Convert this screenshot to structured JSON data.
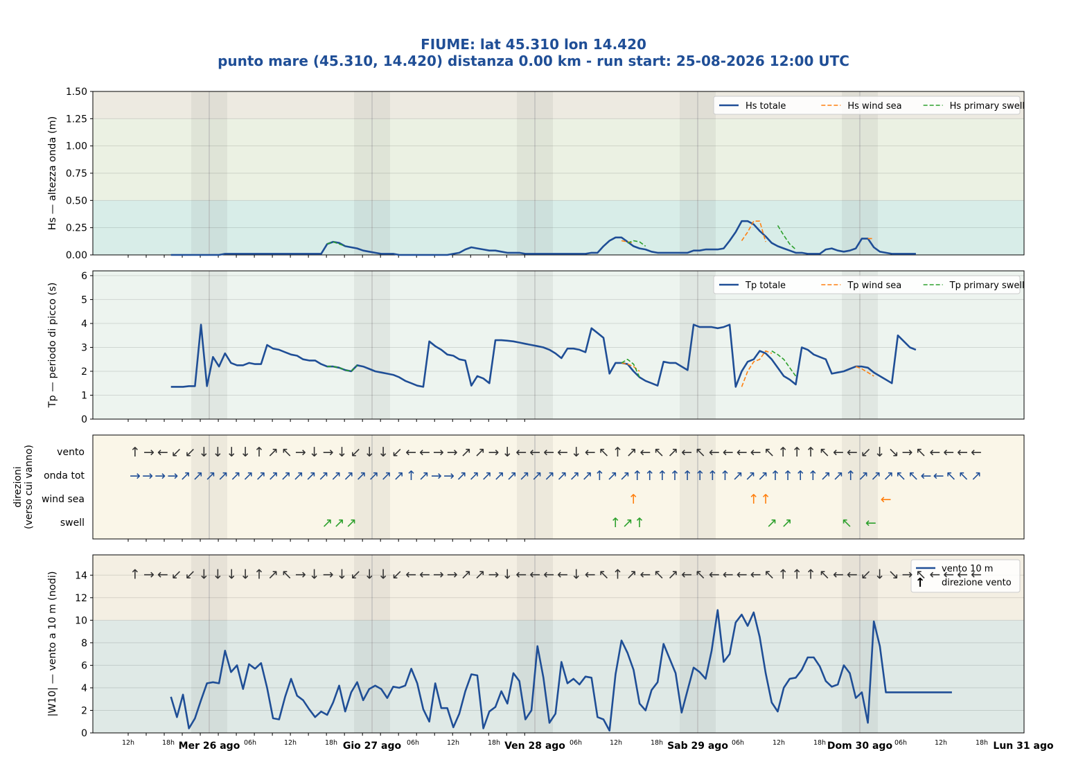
{
  "header": {
    "title": "FIUME: lat 45.310 lon 14.420",
    "subtitle": "punto mare (45.310, 14.420)  distanza 0.00 km  -  run start: 25-08-2026 12:00 UTC"
  },
  "colors": {
    "total": "#1f4e96",
    "wind_sea": "#ff7f0e",
    "swell": "#2ca02c",
    "arrow_gray": "#333333"
  },
  "x_axis": {
    "hour_labels": [
      "12h",
      "18h",
      "06h",
      "12h",
      "18h",
      "06h",
      "12h",
      "18h",
      "06h",
      "12h",
      "18h",
      "06h",
      "12h",
      "18h",
      "06h",
      "12h",
      "18h"
    ],
    "day_labels": [
      "Mer 26 ago",
      "Gio 27 ago",
      "Ven 28 ago",
      "Sab 29 ago",
      "Dom 30 ago",
      "Lun 31 ago"
    ]
  },
  "chart_data": [
    {
      "type": "line",
      "ylabel": "Hs — altezza onda (m)",
      "ylim": [
        0,
        1.5
      ],
      "yticks": [
        "0.00",
        "0.25",
        "0.50",
        "0.75",
        "1.00",
        "1.25",
        "1.50"
      ],
      "legend": [
        "Hs totale",
        "Hs wind sea",
        "Hs primary swell"
      ],
      "legend_position": "top-right",
      "x_hours_from_start": [
        0,
        2,
        4,
        6,
        8,
        10,
        12,
        14,
        16,
        18,
        20,
        22,
        24,
        26,
        28,
        30,
        32,
        34,
        36,
        38,
        40,
        42,
        44,
        46,
        48,
        50,
        52,
        54,
        56,
        58,
        60,
        62,
        64,
        66,
        68,
        70,
        72,
        74,
        76,
        78,
        80,
        82,
        84,
        86,
        88,
        90,
        92,
        94,
        96,
        98,
        100,
        102,
        104,
        106,
        108,
        110,
        112,
        114,
        116,
        118,
        120,
        122,
        124,
        126,
        128,
        130,
        132,
        134,
        136,
        138,
        140,
        142,
        144,
        146,
        148,
        150,
        152,
        154,
        156,
        158,
        160,
        162,
        164,
        166,
        168,
        170,
        172,
        174,
        176,
        178,
        180,
        182,
        184,
        186,
        188,
        190,
        192,
        194,
        196,
        198,
        200,
        202,
        204,
        206,
        208,
        210,
        212,
        214,
        216,
        218,
        220,
        222,
        224,
        226,
        228,
        230,
        232,
        234,
        236,
        238,
        240,
        242,
        244,
        246,
        248,
        250,
        252,
        254,
        256,
        258,
        260,
        262,
        264,
        266,
        268,
        270,
        272,
        274,
        276
      ],
      "series": [
        {
          "name": "Hs totale",
          "values": [
            0.0,
            0.0,
            0.0,
            0.0,
            0.0,
            0.0,
            0.0,
            0.0,
            0.0,
            0.01,
            0.01,
            0.01,
            0.01,
            0.01,
            0.01,
            0.01,
            0.01,
            0.01,
            0.01,
            0.01,
            0.01,
            0.01,
            0.01,
            0.01,
            0.01,
            0.01,
            0.1,
            0.12,
            0.11,
            0.08,
            0.07,
            0.06,
            0.04,
            0.03,
            0.02,
            0.01,
            0.01,
            0.01,
            0.0,
            0.0,
            0.0,
            0.0,
            0.0,
            0.0,
            0.0,
            0.0,
            0.0,
            0.01,
            0.02,
            0.05,
            0.07,
            0.06,
            0.05,
            0.04,
            0.04,
            0.03,
            0.02,
            0.02,
            0.02,
            0.01,
            0.01,
            0.01,
            0.01,
            0.01,
            0.01,
            0.01,
            0.01,
            0.01,
            0.01,
            0.01,
            0.02,
            0.02,
            0.08,
            0.13,
            0.16,
            0.16,
            0.12,
            0.08,
            0.06,
            0.05,
            0.03,
            0.02,
            0.02,
            0.02,
            0.02,
            0.02,
            0.02,
            0.04,
            0.04,
            0.05,
            0.05,
            0.05,
            0.06,
            0.13,
            0.21,
            0.31,
            0.31,
            0.28,
            0.22,
            0.17,
            0.11,
            0.08,
            0.06,
            0.04,
            0.02,
            0.02,
            0.01,
            0.01,
            0.01,
            0.05,
            0.06,
            0.04,
            0.03,
            0.04,
            0.06,
            0.15,
            0.15,
            0.07,
            0.03,
            0.02,
            0.01,
            0.01,
            0.01,
            0.01,
            0.01
          ]
        },
        {
          "name": "Hs wind sea",
          "segments": [
            {
              "start_hour": 150,
              "values": [
                0.13,
                0.12,
                0.11
              ]
            },
            {
              "start_hour": 190,
              "values": [
                0.13,
                0.21,
                0.31,
                0.31,
                0.12
              ]
            },
            {
              "start_hour": 232,
              "values": [
                0.15,
                0.15
              ]
            }
          ]
        },
        {
          "name": "Hs primary swell",
          "segments": [
            {
              "start_hour": 52,
              "values": [
                0.1,
                0.12,
                0.1,
                0.08
              ]
            },
            {
              "start_hour": 152,
              "values": [
                0.11,
                0.13,
                0.12,
                0.08
              ]
            },
            {
              "start_hour": 202,
              "values": [
                0.27,
                0.18,
                0.1,
                0.05
              ]
            }
          ]
        }
      ]
    },
    {
      "type": "line",
      "ylabel": "Tp — periodo di picco (s)",
      "ylim": [
        0,
        6.2
      ],
      "yticks": [
        "0",
        "1",
        "2",
        "3",
        "4",
        "5",
        "6"
      ],
      "legend": [
        "Tp totale",
        "Tp wind sea",
        "Tp primary swell"
      ],
      "legend_position": "top-right",
      "series": [
        {
          "name": "Tp totale",
          "values": [
            1.35,
            1.35,
            1.35,
            1.38,
            1.38,
            3.95,
            1.38,
            2.6,
            2.2,
            2.75,
            2.35,
            2.25,
            2.25,
            2.35,
            2.3,
            2.3,
            3.1,
            2.95,
            2.9,
            2.8,
            2.7,
            2.65,
            2.5,
            2.45,
            2.45,
            2.3,
            2.2,
            2.2,
            2.15,
            2.05,
            2.0,
            2.25,
            2.2,
            2.1,
            2.0,
            1.95,
            1.9,
            1.85,
            1.75,
            1.6,
            1.5,
            1.4,
            1.35,
            3.25,
            3.05,
            2.9,
            2.7,
            2.65,
            2.5,
            2.45,
            1.4,
            1.8,
            1.7,
            1.5,
            3.3,
            3.3,
            3.28,
            3.25,
            3.2,
            3.15,
            3.1,
            3.05,
            3.0,
            2.9,
            2.75,
            2.55,
            2.95,
            2.95,
            2.9,
            2.8,
            3.8,
            3.6,
            3.4,
            1.9,
            2.35,
            2.35,
            2.3,
            2.0,
            1.75,
            1.6,
            1.5,
            1.4,
            2.4,
            2.35,
            2.35,
            2.2,
            2.05,
            3.95,
            3.85,
            3.85,
            3.85,
            3.8,
            3.85,
            3.95,
            1.35,
            2.0,
            2.4,
            2.5,
            2.85,
            2.75,
            2.5,
            2.15,
            1.8,
            1.65,
            1.45,
            3.0,
            2.9,
            2.7,
            2.6,
            2.5,
            1.9,
            1.95,
            2.0,
            2.1,
            2.2,
            2.2,
            2.15,
            1.95,
            1.8,
            1.65,
            1.5,
            3.5,
            3.25,
            3.0,
            2.9
          ]
        },
        {
          "name": "Tp wind sea",
          "segments": [
            {
              "start_hour": 150,
              "values": [
                2.35,
                2.3,
                2.2,
                2.0
              ]
            },
            {
              "start_hour": 190,
              "values": [
                1.35,
                2.0,
                2.4,
                2.5,
                2.85,
                2.75
              ]
            },
            {
              "start_hour": 228,
              "values": [
                2.2,
                2.1,
                1.95,
                1.8
              ]
            }
          ]
        },
        {
          "name": "Tp primary swell",
          "segments": [
            {
              "start_hour": 52,
              "values": [
                2.2,
                2.2,
                2.15,
                2.05,
                2.0,
                2.25
              ]
            },
            {
              "start_hour": 150,
              "values": [
                2.35,
                2.5,
                2.3,
                1.75
              ]
            },
            {
              "start_hour": 200,
              "values": [
                2.85,
                2.7,
                2.5,
                2.15,
                1.8
              ]
            }
          ]
        }
      ]
    },
    {
      "type": "table",
      "ylabel": "direzioni",
      "ylabel2": "(verso cui vanno)",
      "rows": [
        "vento",
        "onda tot",
        "wind sea",
        "swell"
      ],
      "vento": [
        "↑",
        "→",
        "←",
        "↙",
        "↙",
        "↓",
        "↓",
        "↓",
        "↓",
        "↑",
        "↗",
        "↖",
        "→",
        "↓",
        "→",
        "↓",
        "↙",
        "↓",
        "↓",
        "↙",
        "←",
        "←",
        "→",
        "→",
        "↗",
        "↗",
        "→",
        "↓",
        "←",
        "←",
        "←",
        "←",
        "↓",
        "←",
        "↖",
        "↑",
        "↗",
        "←",
        "↖",
        "↗",
        "←",
        "↖",
        "←",
        "←",
        "←",
        "←",
        "↖",
        "↑",
        "↑",
        "↑",
        "↖",
        "←",
        "←",
        "↙",
        "↓",
        "↘",
        "→",
        "↖",
        "←",
        "←",
        "←",
        "←"
      ],
      "onda_tot": [
        "→",
        "→",
        "→",
        "→",
        "↗",
        "↗",
        "↗",
        "↗",
        "↗",
        "↗",
        "↗",
        "↗",
        "↗",
        "↗",
        "↗",
        "↗",
        "↗",
        "↗",
        "↗",
        "↗",
        "↗",
        "↗",
        "↑",
        "↗",
        "→",
        "→",
        "↗",
        "↗",
        "↗",
        "↗",
        "↗",
        "↗",
        "↗",
        "↗",
        "↗",
        "↗",
        "↗",
        "↑",
        "↗",
        "↗",
        "↑",
        "↑",
        "↑",
        "↑",
        "↑",
        "↑",
        "↑",
        "↑",
        "↗",
        "↗",
        "↗",
        "↑",
        "↑",
        "↑",
        "↑",
        "↗",
        "↗",
        "↑",
        "↗",
        "↗",
        "↗",
        "↖",
        "↖",
        "←",
        "←",
        "↖",
        "↖",
        "↗"
      ],
      "wind_sea": [
        {
          "hour": 154,
          "arrow": "↑"
        },
        {
          "hour": 194,
          "arrow": "↑"
        },
        {
          "hour": 198,
          "arrow": "↑"
        },
        {
          "hour": 238,
          "arrow": "←"
        }
      ],
      "swell": [
        {
          "hour": 52,
          "arrow": "↗"
        },
        {
          "hour": 56,
          "arrow": "↗"
        },
        {
          "hour": 60,
          "arrow": "↗"
        },
        {
          "hour": 148,
          "arrow": "↑"
        },
        {
          "hour": 152,
          "arrow": "↗"
        },
        {
          "hour": 156,
          "arrow": "↑"
        },
        {
          "hour": 200,
          "arrow": "↗"
        },
        {
          "hour": 205,
          "arrow": "↗"
        },
        {
          "hour": 225,
          "arrow": "↖"
        },
        {
          "hour": 233,
          "arrow": "←"
        }
      ]
    },
    {
      "type": "line",
      "ylabel": "|W10| — vento a 10 m (nodi)",
      "ylim": [
        0,
        15.8
      ],
      "yticks": [
        "0",
        "2",
        "4",
        "6",
        "8",
        "10",
        "12",
        "14"
      ],
      "legend": [
        "vento 10 m",
        "direzione vento"
      ],
      "legend_position": "top-right",
      "series": [
        {
          "name": "vento 10 m",
          "values": [
            3.2,
            1.4,
            3.4,
            0.4,
            1.3,
            2.9,
            4.4,
            4.5,
            4.4,
            7.3,
            5.4,
            6.0,
            3.9,
            6.1,
            5.7,
            6.2,
            4.0,
            1.3,
            1.2,
            3.2,
            4.8,
            3.3,
            2.9,
            2.1,
            1.4,
            1.9,
            1.6,
            2.7,
            4.2,
            1.9,
            3.6,
            4.5,
            2.9,
            3.9,
            4.2,
            3.9,
            3.1,
            4.1,
            4.0,
            4.2,
            5.7,
            4.4,
            2.1,
            1.0,
            4.4,
            2.2,
            2.2,
            0.5,
            1.7,
            3.7,
            5.2,
            5.1,
            0.4,
            1.9,
            2.3,
            3.7,
            2.6,
            5.3,
            4.6,
            1.2,
            2.0,
            7.7,
            4.9,
            0.9,
            1.7,
            6.3,
            4.4,
            4.8,
            4.3,
            5.0,
            4.9,
            1.4,
            1.2,
            0.2,
            5.2,
            8.2,
            7.1,
            5.6,
            2.6,
            2.0,
            3.8,
            4.5,
            7.9,
            6.6,
            5.3,
            1.8,
            3.8,
            5.8,
            5.4,
            4.8,
            7.3,
            10.9,
            6.3,
            7.0,
            9.8,
            10.5,
            9.5,
            10.7,
            8.5,
            5.3,
            2.7,
            1.9,
            4.0,
            4.8,
            4.9,
            5.6,
            6.7,
            6.7,
            5.9,
            4.6,
            4.1,
            4.3,
            6.0,
            5.3,
            3.1,
            3.6,
            0.9,
            9.9,
            7.7,
            3.6,
            3.6,
            3.6,
            3.6,
            3.6,
            3.6,
            3.6,
            3.6,
            3.6,
            3.6,
            3.6,
            3.6
          ]
        }
      ],
      "direction_arrows_note": "same as vento row"
    }
  ]
}
